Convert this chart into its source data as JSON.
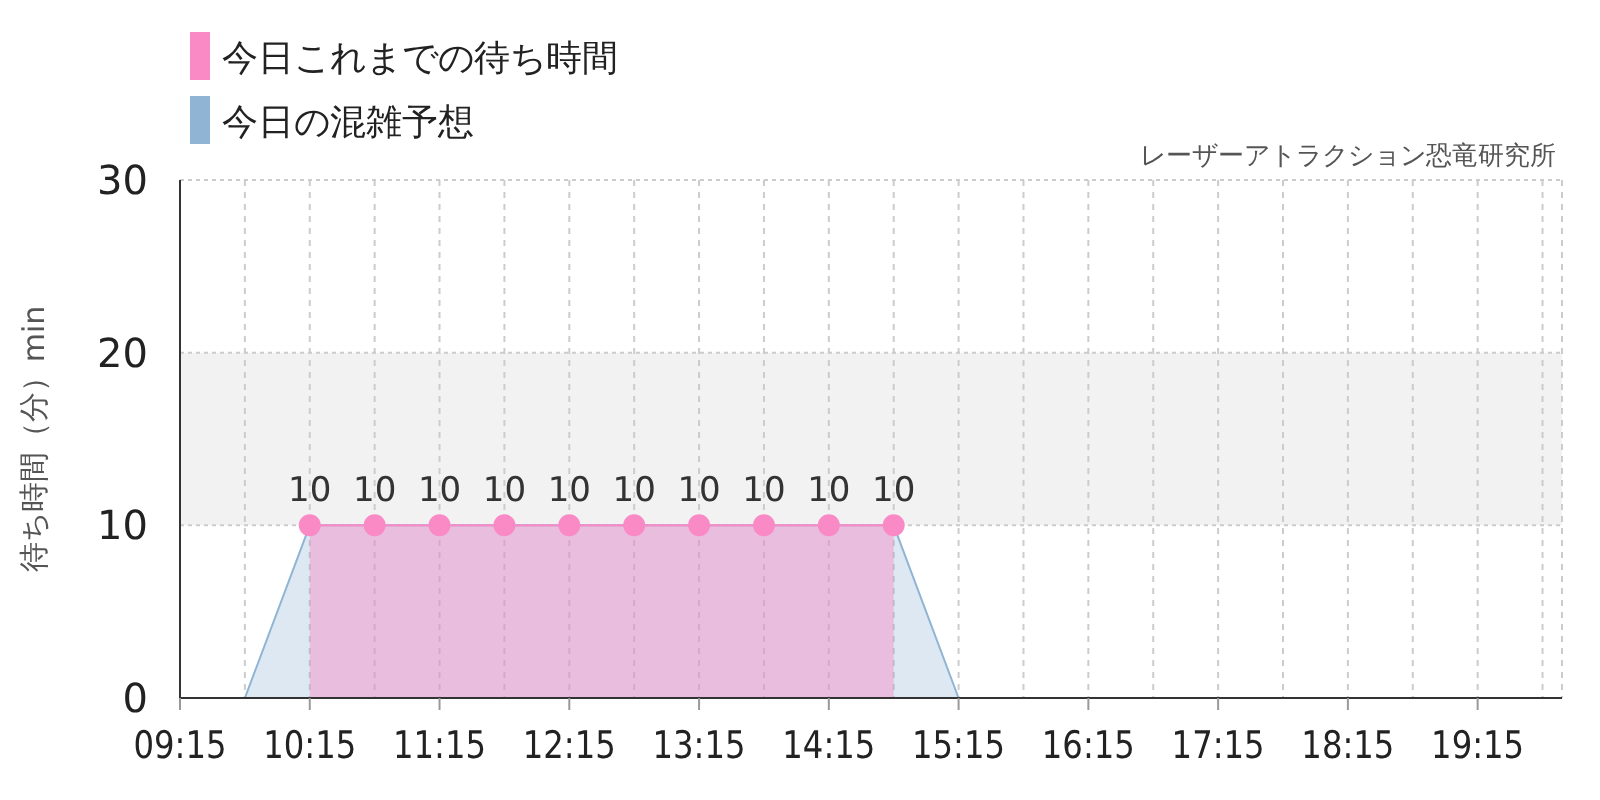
{
  "chart_data": {
    "type": "area",
    "subtitle": "レーザーアトラクション恐竜研究所",
    "ylabel": "待ち時間（分）min",
    "xlim": [
      9.25,
      19.9
    ],
    "xticks": [
      {
        "value": 9.25,
        "label": "09:15"
      },
      {
        "value": 9.75,
        "label": null
      },
      {
        "value": 10.25,
        "label": "10:15"
      },
      {
        "value": 10.75,
        "label": null
      },
      {
        "value": 11.25,
        "label": "11:15"
      },
      {
        "value": 11.75,
        "label": null
      },
      {
        "value": 12.25,
        "label": "12:15"
      },
      {
        "value": 12.75,
        "label": null
      },
      {
        "value": 13.25,
        "label": "13:15"
      },
      {
        "value": 13.75,
        "label": null
      },
      {
        "value": 14.25,
        "label": "14:15"
      },
      {
        "value": 14.75,
        "label": null
      },
      {
        "value": 15.25,
        "label": "15:15"
      },
      {
        "value": 15.75,
        "label": null
      },
      {
        "value": 16.25,
        "label": "16:15"
      },
      {
        "value": 16.75,
        "label": null
      },
      {
        "value": 17.25,
        "label": "17:15"
      },
      {
        "value": 17.75,
        "label": null
      },
      {
        "value": 18.25,
        "label": "18:15"
      },
      {
        "value": 18.75,
        "label": null
      },
      {
        "value": 19.25,
        "label": "19:15"
      },
      {
        "value": 19.75,
        "label": null
      }
    ],
    "ylim": [
      0,
      30
    ],
    "yticks": [
      0,
      10,
      20,
      30
    ],
    "grid": true,
    "legend": "top left",
    "bands": [
      {
        "axis": "y",
        "from": 10,
        "to": 20,
        "color": "#f2f2f2"
      }
    ],
    "series": [
      {
        "name": "今日の混雑予想",
        "color": "#8fb4d4",
        "marker": "none",
        "x": [
          9.25,
          9.75,
          10.25,
          10.75,
          11.25,
          11.75,
          12.25,
          12.75,
          13.25,
          13.75,
          14.25,
          14.75,
          15.25,
          15.75,
          16.25,
          16.75,
          17.25,
          17.75,
          18.25,
          18.75,
          19.25,
          19.75
        ],
        "values": [
          0,
          0,
          10,
          10,
          10,
          10,
          10,
          10,
          10,
          10,
          10,
          10,
          0,
          0,
          0,
          0,
          0,
          0,
          0,
          0,
          0,
          0
        ]
      },
      {
        "name": "今日これまでの待ち時間",
        "color": "#f98ac6",
        "marker": "circle",
        "x": [
          10.25,
          10.75,
          11.25,
          11.75,
          12.25,
          12.75,
          13.25,
          13.75,
          14.25,
          14.75
        ],
        "values": [
          10,
          10,
          10,
          10,
          10,
          10,
          10,
          10,
          10,
          10
        ],
        "value_labels": [
          "10",
          "10",
          "10",
          "10",
          "10",
          "10",
          "10",
          "10",
          "10",
          "10"
        ]
      }
    ]
  }
}
